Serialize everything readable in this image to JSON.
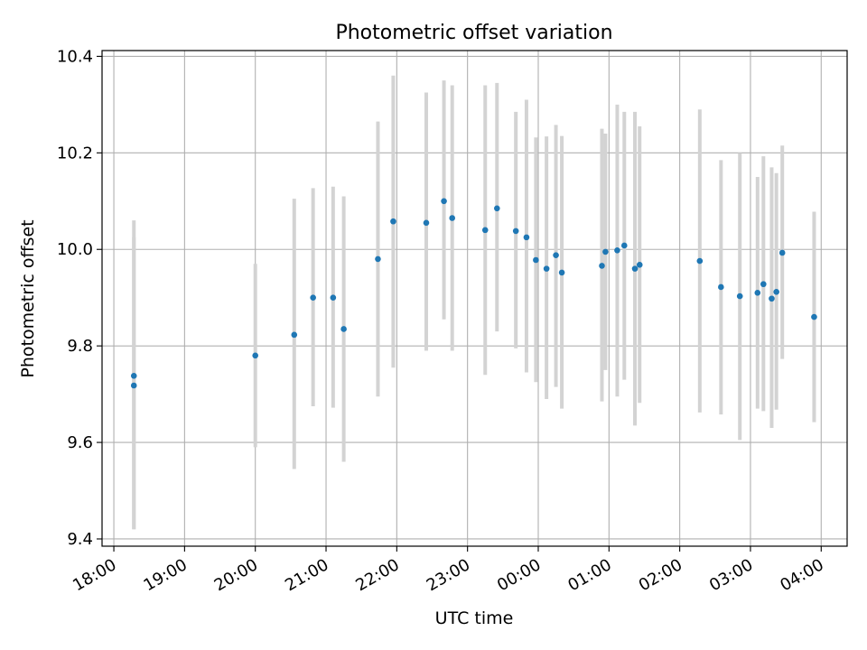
{
  "chart_data": {
    "type": "scatter",
    "title": "Photometric offset variation",
    "xlabel": "UTC time",
    "ylabel": "Photometric offset",
    "x_tick_labels": [
      "18:00",
      "19:00",
      "20:00",
      "21:00",
      "22:00",
      "23:00",
      "00:00",
      "01:00",
      "02:00",
      "03:00",
      "04:00"
    ],
    "y_ticks": [
      9.4,
      9.6,
      9.8,
      10.0,
      10.2,
      10.4
    ],
    "y_tick_labels": [
      "9.4",
      "9.6",
      "9.8",
      "10.0",
      "10.2",
      "10.4"
    ],
    "xlim": [
      "17:50",
      "04:22"
    ],
    "ylim": [
      9.385,
      10.412
    ],
    "grid": true,
    "colors": {
      "points": "#1f77b4",
      "error_bars": "#d3d3d3",
      "grid": "#b0b0b0"
    },
    "points": [
      {
        "x": "18:17",
        "y": 9.738,
        "ylow": 9.42,
        "yhigh": 10.06
      },
      {
        "x": "18:17",
        "y": 9.718,
        "ylow": 9.42,
        "yhigh": 10.025
      },
      {
        "x": "20:00",
        "y": 9.78,
        "ylow": 9.59,
        "yhigh": 9.97
      },
      {
        "x": "20:33",
        "y": 9.823,
        "ylow": 9.545,
        "yhigh": 10.105
      },
      {
        "x": "20:49",
        "y": 9.9,
        "ylow": 9.675,
        "yhigh": 10.127
      },
      {
        "x": "21:06",
        "y": 9.9,
        "ylow": 9.672,
        "yhigh": 10.13
      },
      {
        "x": "21:15",
        "y": 9.835,
        "ylow": 9.56,
        "yhigh": 10.11
      },
      {
        "x": "21:44",
        "y": 9.98,
        "ylow": 9.695,
        "yhigh": 10.265
      },
      {
        "x": "21:57",
        "y": 10.058,
        "ylow": 9.755,
        "yhigh": 10.36
      },
      {
        "x": "22:25",
        "y": 10.055,
        "ylow": 9.79,
        "yhigh": 10.325
      },
      {
        "x": "22:40",
        "y": 10.1,
        "ylow": 9.855,
        "yhigh": 10.35
      },
      {
        "x": "22:47",
        "y": 10.065,
        "ylow": 9.79,
        "yhigh": 10.34
      },
      {
        "x": "23:15",
        "y": 10.04,
        "ylow": 9.74,
        "yhigh": 10.34
      },
      {
        "x": "23:25",
        "y": 10.085,
        "ylow": 9.83,
        "yhigh": 10.345
      },
      {
        "x": "23:41",
        "y": 10.038,
        "ylow": 9.795,
        "yhigh": 10.285
      },
      {
        "x": "23:50",
        "y": 10.025,
        "ylow": 9.745,
        "yhigh": 10.31
      },
      {
        "x": "23:58",
        "y": 9.978,
        "ylow": 9.725,
        "yhigh": 10.232
      },
      {
        "x": "00:07",
        "y": 9.96,
        "ylow": 9.69,
        "yhigh": 10.234
      },
      {
        "x": "00:15",
        "y": 9.988,
        "ylow": 9.715,
        "yhigh": 10.258
      },
      {
        "x": "00:20",
        "y": 9.952,
        "ylow": 9.67,
        "yhigh": 10.235
      },
      {
        "x": "00:54",
        "y": 9.966,
        "ylow": 9.685,
        "yhigh": 10.25
      },
      {
        "x": "00:57",
        "y": 9.995,
        "ylow": 9.75,
        "yhigh": 10.24
      },
      {
        "x": "01:07",
        "y": 9.998,
        "ylow": 9.695,
        "yhigh": 10.3
      },
      {
        "x": "01:13",
        "y": 10.008,
        "ylow": 9.73,
        "yhigh": 10.285
      },
      {
        "x": "01:22",
        "y": 9.96,
        "ylow": 9.635,
        "yhigh": 10.285
      },
      {
        "x": "01:26",
        "y": 9.968,
        "ylow": 9.682,
        "yhigh": 10.255
      },
      {
        "x": "02:17",
        "y": 9.976,
        "ylow": 9.662,
        "yhigh": 10.29
      },
      {
        "x": "02:35",
        "y": 9.922,
        "ylow": 9.658,
        "yhigh": 10.185
      },
      {
        "x": "02:51",
        "y": 9.903,
        "ylow": 9.605,
        "yhigh": 10.2
      },
      {
        "x": "03:06",
        "y": 9.91,
        "ylow": 9.67,
        "yhigh": 10.15
      },
      {
        "x": "03:11",
        "y": 9.928,
        "ylow": 9.665,
        "yhigh": 10.193
      },
      {
        "x": "03:18",
        "y": 9.898,
        "ylow": 9.63,
        "yhigh": 10.17
      },
      {
        "x": "03:22",
        "y": 9.912,
        "ylow": 9.668,
        "yhigh": 10.158
      },
      {
        "x": "03:27",
        "y": 9.993,
        "ylow": 9.773,
        "yhigh": 10.215
      },
      {
        "x": "03:54",
        "y": 9.86,
        "ylow": 9.642,
        "yhigh": 10.078
      }
    ]
  }
}
